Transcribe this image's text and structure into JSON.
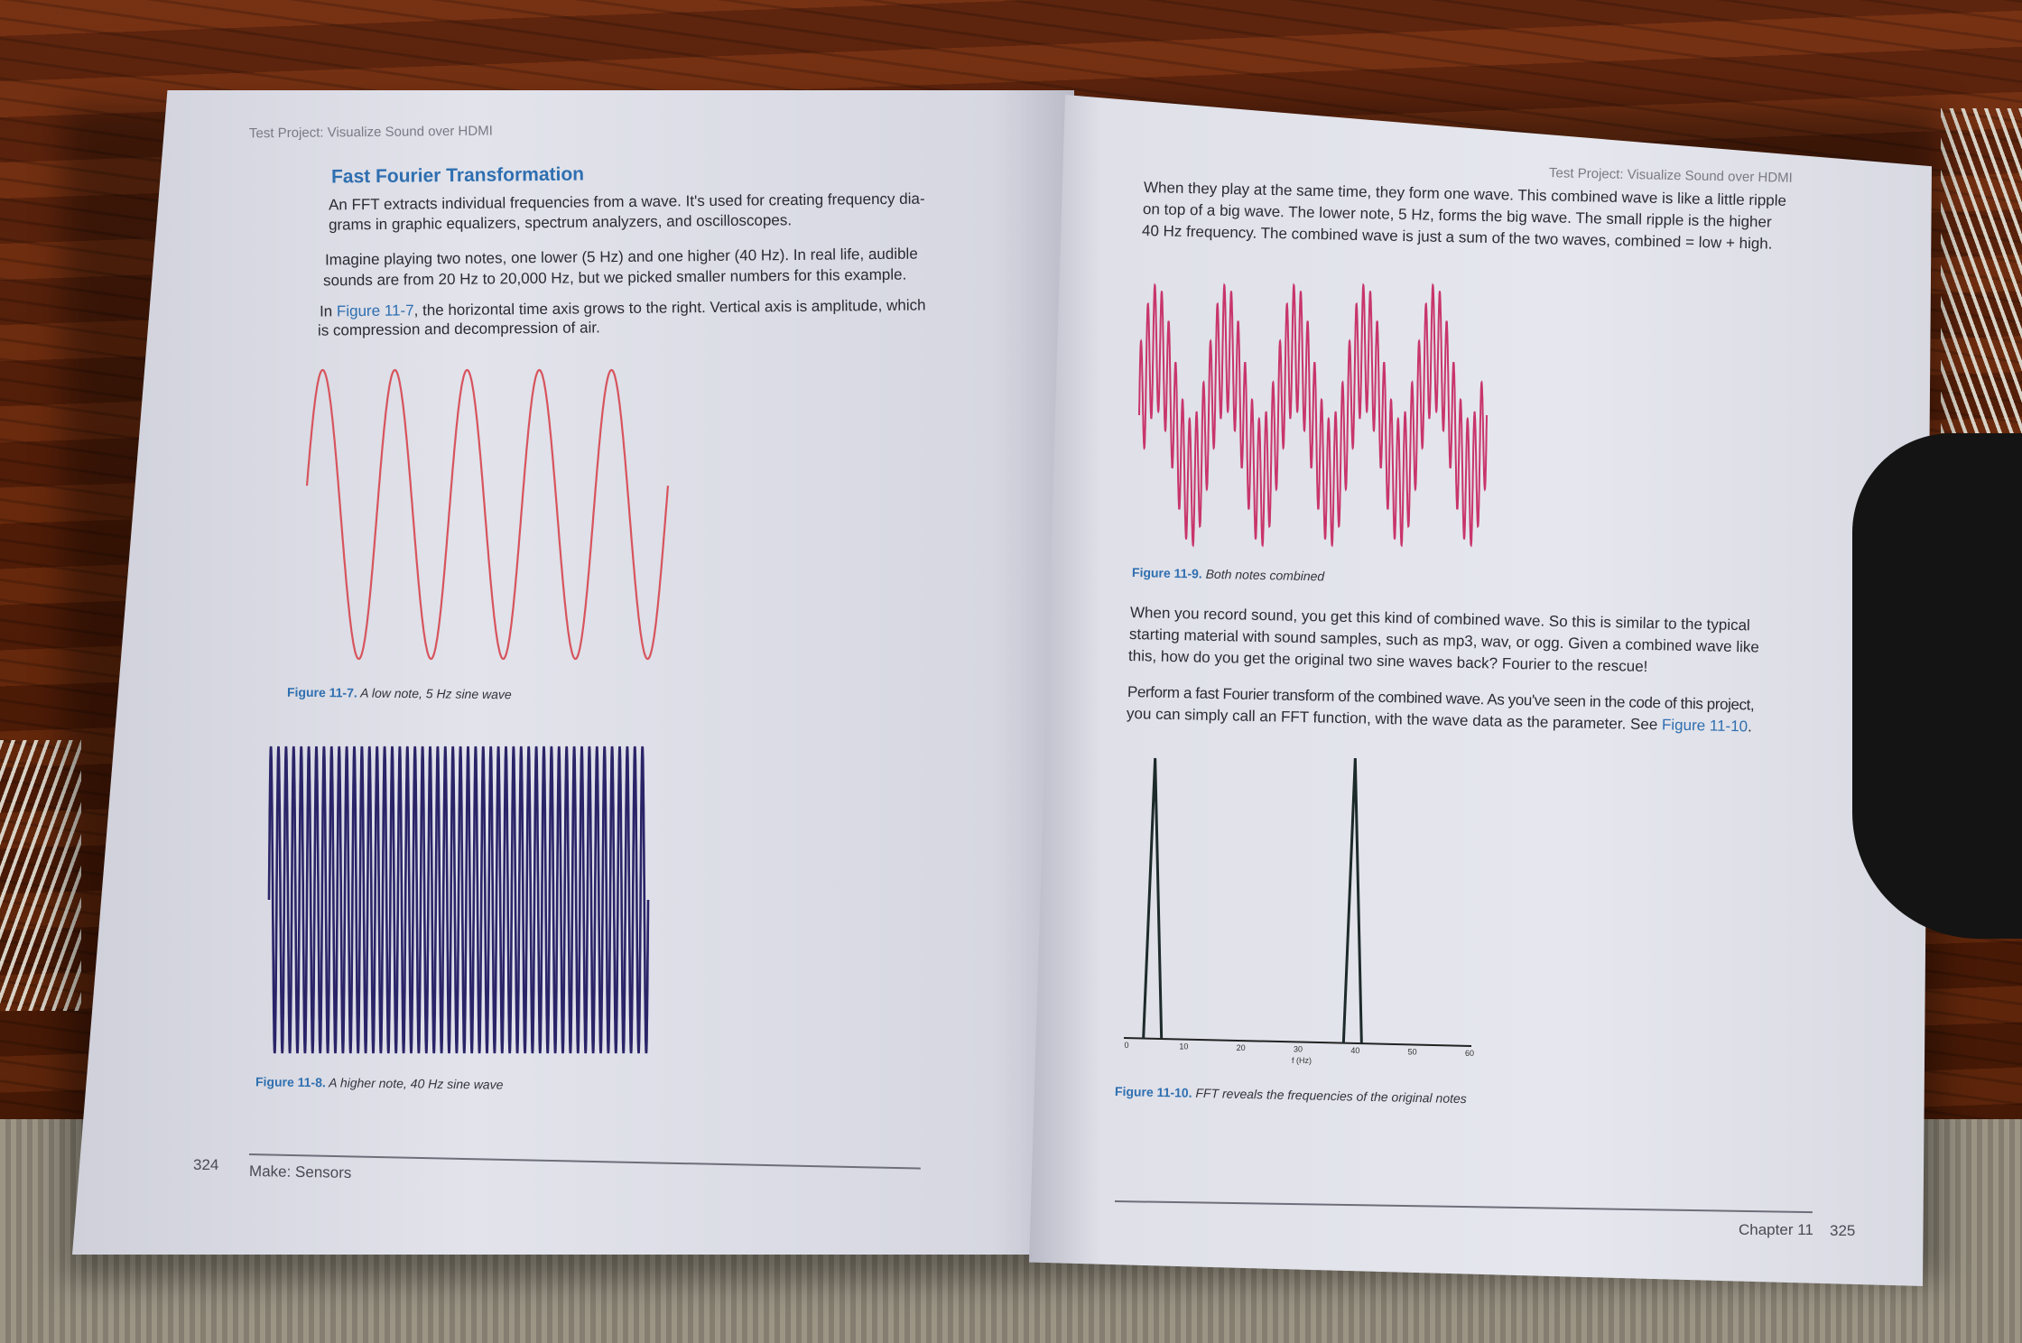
{
  "left_page": {
    "running_header": "Test Project: Visualize Sound over HDMI",
    "heading": "Fast Fourier Transformation",
    "para1_line1": "An FFT extracts individual frequencies from a wave. It's used for creating frequency dia-",
    "para1_line2": "grams in graphic equalizers, spectrum analyzers, and oscilloscopes.",
    "para2_line1": "Imagine playing two notes, one lower (5 Hz) and one higher (40 Hz). In real life, audible",
    "para2_line2": "sounds are from 20 Hz to 20,000 Hz, but we picked smaller numbers for this example.",
    "para3_prefix": "In ",
    "para3_link": "Figure 11-7",
    "para3_line1_rest": ", the horizontal time axis grows to the right. Vertical axis is amplitude, which",
    "para3_line2": "is compression and decompression of air.",
    "fig7_label": "Figure 11-7.",
    "fig7_caption": "A low note, 5 Hz sine wave",
    "fig8_label": "Figure 11-8.",
    "fig8_caption": "A higher note, 40 Hz sine wave",
    "page_number": "324",
    "footer_title": "Make: Sensors"
  },
  "right_page": {
    "running_header": "Test Project: Visualize Sound over HDMI",
    "para1_line1": "When they play at the same time, they form one wave. This combined wave is like a little ripple",
    "para1_line2": "on top of a big wave. The lower note, 5 Hz, forms the big wave. The small ripple is the higher",
    "para1_line3": "40 Hz frequency. The combined wave is just a sum of the two waves, combined = low + high.",
    "fig9_label": "Figure 11-9.",
    "fig9_caption": "Both notes combined",
    "para2_line1": "When you record sound, you get this kind of combined wave. So this is similar to the typical",
    "para2_line2": "starting material with sound samples, such as mp3, wav, or ogg. Given a combined wave like",
    "para2_line3": "this, how do you get the original two sine waves back? Fourier to the rescue!",
    "para3_line1": "Perform a fast Fourier transform of the combined wave. As you've seen in the code of this project,",
    "para3_line2_prefix": "you can simply call an FFT function, with the wave data as the parameter. See ",
    "para3_link": "Figure 11-10",
    "para3_line2_suffix": ".",
    "fig10_label": "Figure 11-10.",
    "fig10_caption": "FFT reveals the frequencies of the original notes",
    "fig10_xticks": [
      "0",
      "10",
      "20",
      "30",
      "40",
      "50",
      "60"
    ],
    "fig10_xlabel": "f (Hz)",
    "chapter_label": "Chapter 11",
    "page_number": "325"
  },
  "chart_data": [
    {
      "type": "line",
      "title": "",
      "frequency_hz": 5,
      "cycles_shown": 5,
      "amplitude": 1,
      "color": "#d7545d"
    },
    {
      "type": "line",
      "title": "",
      "frequency_hz": 40,
      "cycles_shown": 50,
      "amplitude": 1,
      "color": "#2a2468"
    },
    {
      "type": "line",
      "title": "",
      "components_hz": [
        5,
        40
      ],
      "color": "#c8356a"
    },
    {
      "type": "line",
      "title": "",
      "xlabel": "f (Hz)",
      "xlim": [
        0,
        60
      ],
      "x_ticks": [
        0,
        10,
        20,
        30,
        40,
        50,
        60
      ],
      "peaks": [
        {
          "x": 5,
          "y": 1
        },
        {
          "x": 40,
          "y": 1
        }
      ],
      "color": "#1d2a2a"
    }
  ],
  "colors": {
    "link": "#2f6fb0",
    "low_wave": "#d7545d",
    "high_wave": "#2a2468",
    "combined_wave": "#c8356a"
  }
}
